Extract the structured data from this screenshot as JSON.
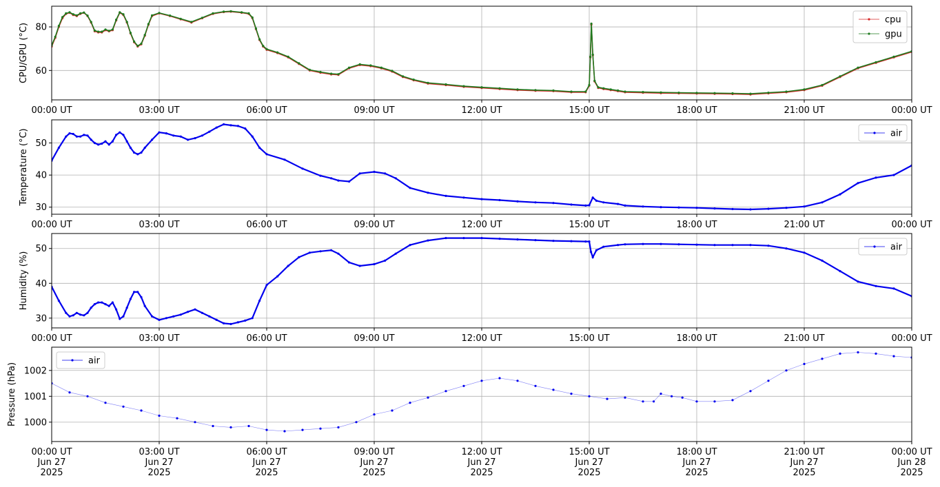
{
  "chart_data": [
    {
      "type": "line",
      "ylabel": "CPU/GPU (°C)",
      "xlim_hours": [
        0,
        24
      ],
      "ylim": [
        46.5,
        89.5
      ],
      "yticks": [
        60,
        80
      ],
      "ytick_labels": [
        "60",
        "80"
      ],
      "xticks_hours": [
        0,
        3,
        6,
        9,
        12,
        15,
        18,
        21,
        24
      ],
      "xtick_labels": [
        "00:00 UT",
        "03:00 UT",
        "06:00 UT",
        "09:00 UT",
        "12:00 UT",
        "15:00 UT",
        "18:00 UT",
        "21:00 UT",
        "00:00 UT"
      ],
      "grid": true,
      "legend": "top-right",
      "series": [
        {
          "name": "cpu",
          "color": "#d62728",
          "x_hours": [
            0,
            0.1,
            0.2,
            0.3,
            0.4,
            0.5,
            0.6,
            0.7,
            0.8,
            0.9,
            1.0,
            1.1,
            1.2,
            1.3,
            1.4,
            1.5,
            1.6,
            1.7,
            1.8,
            1.9,
            2.0,
            2.1,
            2.2,
            2.3,
            2.4,
            2.5,
            2.6,
            2.7,
            2.8,
            3.0,
            3.3,
            3.6,
            3.9,
            4.2,
            4.5,
            4.8,
            5.0,
            5.3,
            5.5,
            5.6,
            5.7,
            5.8,
            5.9,
            6.0,
            6.3,
            6.6,
            6.9,
            7.2,
            7.5,
            7.8,
            8.0,
            8.3,
            8.6,
            8.9,
            9.2,
            9.5,
            9.8,
            10.1,
            10.5,
            11,
            11.5,
            12,
            12.5,
            13,
            13.5,
            14,
            14.5,
            14.9,
            15.0,
            15.03,
            15.06,
            15.1,
            15.15,
            15.25,
            15.4,
            15.6,
            15.8,
            16.0,
            16.5,
            17,
            17.5,
            18,
            18.5,
            19,
            19.5,
            20,
            20.5,
            21,
            21.5,
            22,
            22.5,
            23,
            23.5,
            24
          ],
          "values": [
            71,
            75,
            80,
            84,
            86,
            86.5,
            85.5,
            85,
            86,
            86.5,
            85,
            82,
            78,
            77.5,
            77.5,
            78.5,
            78,
            78.5,
            83,
            86.5,
            85.5,
            82,
            77,
            73,
            71,
            72,
            76,
            81,
            85,
            86.2,
            85,
            83.5,
            82,
            84,
            86,
            86.8,
            87,
            86.5,
            86,
            84,
            79,
            74,
            71,
            69.5,
            68,
            66,
            63,
            60,
            59,
            58.2,
            58,
            61,
            62.5,
            62,
            61,
            59.5,
            57,
            55.5,
            54,
            53.3,
            52.5,
            52,
            51.5,
            51,
            50.7,
            50.5,
            50,
            50,
            53,
            66,
            81,
            67,
            55,
            52,
            51.5,
            51,
            50.5,
            50,
            49.8,
            49.6,
            49.5,
            49.4,
            49.3,
            49.2,
            49,
            49.5,
            50,
            51,
            53,
            57,
            61,
            63.5,
            66,
            68.5
          ]
        },
        {
          "name": "gpu",
          "color": "#1f7a1f",
          "x_hours": [
            0,
            0.1,
            0.2,
            0.3,
            0.4,
            0.5,
            0.6,
            0.7,
            0.8,
            0.9,
            1.0,
            1.1,
            1.2,
            1.3,
            1.4,
            1.5,
            1.6,
            1.7,
            1.8,
            1.9,
            2.0,
            2.1,
            2.2,
            2.3,
            2.4,
            2.5,
            2.6,
            2.7,
            2.8,
            3.0,
            3.3,
            3.6,
            3.9,
            4.2,
            4.5,
            4.8,
            5.0,
            5.3,
            5.5,
            5.6,
            5.7,
            5.8,
            5.9,
            6.0,
            6.3,
            6.6,
            6.9,
            7.2,
            7.5,
            7.8,
            8.0,
            8.3,
            8.6,
            8.9,
            9.2,
            9.5,
            9.8,
            10.1,
            10.5,
            11,
            11.5,
            12,
            12.5,
            13,
            13.5,
            14,
            14.5,
            14.9,
            15.0,
            15.03,
            15.06,
            15.1,
            15.15,
            15.25,
            15.4,
            15.6,
            15.8,
            16.0,
            16.5,
            17,
            17.5,
            18,
            18.5,
            19,
            19.5,
            20,
            20.5,
            21,
            21.5,
            22,
            22.5,
            23,
            23.5,
            24
          ],
          "values": [
            71.5,
            75.5,
            80.5,
            84.5,
            86.2,
            86.7,
            85.8,
            85.3,
            86.2,
            86.6,
            85.2,
            82.3,
            78.3,
            77.8,
            77.8,
            78.8,
            78.2,
            78.8,
            83.3,
            86.7,
            85.8,
            82.3,
            77.3,
            73.3,
            71.3,
            72.3,
            76.3,
            81.3,
            85.3,
            86.4,
            85.2,
            83.7,
            82.3,
            84.2,
            86.2,
            87,
            87.2,
            86.7,
            86.2,
            84.3,
            79.3,
            74.3,
            71.3,
            69.8,
            68.3,
            66.3,
            63.3,
            60.3,
            59.3,
            58.5,
            58.3,
            61.3,
            62.8,
            62.3,
            61.3,
            59.8,
            57.3,
            55.8,
            54.3,
            53.6,
            52.8,
            52.3,
            51.8,
            51.3,
            51,
            50.8,
            50.3,
            50.3,
            53.3,
            66.3,
            81.5,
            67.3,
            55.3,
            52.3,
            51.8,
            51.3,
            50.8,
            50.3,
            50.1,
            49.9,
            49.8,
            49.7,
            49.6,
            49.5,
            49.3,
            49.8,
            50.3,
            51.3,
            53.3,
            57.3,
            61.3,
            63.8,
            66.3,
            68.8
          ]
        }
      ]
    },
    {
      "type": "line",
      "ylabel": "Temperature (°C)",
      "xlim_hours": [
        0,
        24
      ],
      "ylim": [
        27.8,
        57.2
      ],
      "yticks": [
        30,
        40,
        50
      ],
      "ytick_labels": [
        "30",
        "40",
        "50"
      ],
      "xticks_hours": [
        0,
        3,
        6,
        9,
        12,
        15,
        18,
        21,
        24
      ],
      "xtick_labels": [
        "00:00 UT",
        "03:00 UT",
        "06:00 UT",
        "09:00 UT",
        "12:00 UT",
        "15:00 UT",
        "18:00 UT",
        "21:00 UT",
        "00:00 UT"
      ],
      "grid": true,
      "legend": "top-right",
      "series": [
        {
          "name": "air",
          "color": "#0000ee",
          "x_hours": [
            0,
            0.2,
            0.4,
            0.5,
            0.6,
            0.7,
            0.8,
            0.9,
            1.0,
            1.1,
            1.2,
            1.3,
            1.4,
            1.5,
            1.6,
            1.7,
            1.8,
            1.9,
            2.0,
            2.1,
            2.2,
            2.3,
            2.4,
            2.5,
            2.6,
            2.8,
            3.0,
            3.2,
            3.4,
            3.6,
            3.8,
            4.0,
            4.2,
            4.4,
            4.6,
            4.8,
            5.0,
            5.2,
            5.4,
            5.6,
            5.8,
            6.0,
            6.5,
            7.0,
            7.5,
            7.8,
            8.0,
            8.3,
            8.6,
            9.0,
            9.3,
            9.6,
            10.0,
            10.5,
            11,
            11.5,
            12,
            12.5,
            13,
            13.5,
            14,
            14.5,
            14.9,
            15.0,
            15.1,
            15.2,
            15.4,
            15.8,
            16.0,
            16.5,
            17,
            17.5,
            18,
            18.5,
            19,
            19.5,
            20,
            20.5,
            21,
            21.5,
            22,
            22.5,
            23,
            23.5,
            24
          ],
          "values": [
            44.5,
            48.5,
            52,
            53,
            52.8,
            52,
            52,
            52.5,
            52.3,
            51,
            50,
            49.5,
            49.8,
            50.5,
            49.5,
            50.5,
            52.5,
            53.3,
            52.5,
            50.5,
            48.5,
            47,
            46.5,
            47,
            48.5,
            51,
            53.3,
            53,
            52.3,
            52,
            51,
            51.5,
            52.3,
            53.5,
            54.8,
            55.8,
            55.5,
            55.3,
            54.5,
            52,
            48.5,
            46.5,
            44.8,
            42,
            39.8,
            39,
            38.3,
            38,
            40.5,
            41,
            40.5,
            39,
            36,
            34.5,
            33.5,
            33,
            32.5,
            32.2,
            31.8,
            31.5,
            31.3,
            30.8,
            30.5,
            30.6,
            33,
            32,
            31.5,
            31,
            30.5,
            30.2,
            30,
            29.9,
            29.8,
            29.6,
            29.4,
            29.3,
            29.5,
            29.8,
            30.2,
            31.5,
            34,
            37.5,
            39.2,
            40,
            43
          ]
        }
      ]
    },
    {
      "type": "line",
      "ylabel": "Humidity (%)",
      "xlim_hours": [
        0,
        24
      ],
      "ylim": [
        27.2,
        54.3
      ],
      "yticks": [
        30,
        40,
        50
      ],
      "ytick_labels": [
        "30",
        "40",
        "50"
      ],
      "xticks_hours": [
        0,
        3,
        6,
        9,
        12,
        15,
        18,
        21,
        24
      ],
      "xtick_labels": [
        "00:00 UT",
        "03:00 UT",
        "06:00 UT",
        "09:00 UT",
        "12:00 UT",
        "15:00 UT",
        "18:00 UT",
        "21:00 UT",
        "00:00 UT"
      ],
      "grid": true,
      "legend": "top-right",
      "series": [
        {
          "name": "air",
          "color": "#0000ee",
          "x_hours": [
            0,
            0.2,
            0.4,
            0.5,
            0.6,
            0.7,
            0.8,
            0.9,
            1.0,
            1.1,
            1.2,
            1.3,
            1.4,
            1.5,
            1.6,
            1.7,
            1.8,
            1.9,
            2.0,
            2.1,
            2.2,
            2.3,
            2.4,
            2.5,
            2.6,
            2.8,
            3.0,
            3.2,
            3.4,
            3.6,
            3.8,
            4.0,
            4.2,
            4.4,
            4.6,
            4.8,
            5.0,
            5.2,
            5.4,
            5.6,
            5.8,
            6.0,
            6.3,
            6.6,
            6.9,
            7.2,
            7.5,
            7.8,
            8.0,
            8.3,
            8.6,
            9.0,
            9.3,
            9.6,
            10.0,
            10.5,
            11,
            11.5,
            12,
            12.5,
            13,
            13.5,
            14,
            14.5,
            14.9,
            15.0,
            15.05,
            15.1,
            15.2,
            15.4,
            15.8,
            16.0,
            16.5,
            17,
            17.5,
            18,
            18.5,
            19,
            19.5,
            20,
            20.5,
            21,
            21.5,
            22,
            22.5,
            23,
            23.5,
            24
          ],
          "values": [
            39,
            35,
            31.5,
            30.5,
            30.8,
            31.5,
            31,
            30.8,
            31.5,
            33,
            34,
            34.5,
            34.5,
            34,
            33.5,
            34.5,
            32.5,
            29.8,
            30.5,
            33,
            35.5,
            37.5,
            37.5,
            36,
            33.5,
            30.5,
            29.5,
            30,
            30.5,
            31,
            31.8,
            32.5,
            31.5,
            30.5,
            29.5,
            28.5,
            28.3,
            28.8,
            29.3,
            30,
            35,
            39.5,
            42,
            45,
            47.5,
            48.8,
            49.2,
            49.5,
            48.5,
            46,
            45,
            45.5,
            46.5,
            48.5,
            51,
            52.3,
            53,
            53,
            53,
            52.8,
            52.6,
            52.4,
            52.2,
            52.1,
            52,
            52,
            49,
            47.5,
            49.5,
            50.5,
            51,
            51.2,
            51.3,
            51.3,
            51.2,
            51.1,
            51,
            51,
            51,
            50.8,
            50,
            48.8,
            46.5,
            43.5,
            40.5,
            39.2,
            38.5,
            36.3
          ]
        }
      ]
    },
    {
      "type": "scatter",
      "ylabel": "Pressure (hPa)",
      "xlim_hours": [
        0,
        24
      ],
      "ylim": [
        999.25,
        1002.9
      ],
      "yticks": [
        1000,
        1001,
        1002
      ],
      "ytick_labels": [
        "1000",
        "1001",
        "1002"
      ],
      "xticks_hours": [
        0,
        3,
        6,
        9,
        12,
        15,
        18,
        21,
        24
      ],
      "xtick_labels": [
        "00:00 UT\nJun 27\n2025",
        "03:00 UT\nJun 27\n2025",
        "06:00 UT\nJun 27\n2025",
        "09:00 UT\nJun 27\n2025",
        "12:00 UT\nJun 27\n2025",
        "15:00 UT\nJun 27\n2025",
        "18:00 UT\nJun 27\n2025",
        "21:00 UT\nJun 27\n2025",
        "00:00 UT\nJun 28\n2025"
      ],
      "grid": true,
      "legend": "top-left",
      "series": [
        {
          "name": "air",
          "color": "#0000ee",
          "x_hours": [
            0,
            0.5,
            1,
            1.5,
            2,
            2.5,
            3,
            3.5,
            4,
            4.5,
            5,
            5.5,
            6,
            6.5,
            7,
            7.5,
            8,
            8.5,
            9,
            9.5,
            10,
            10.5,
            11,
            11.5,
            12,
            12.5,
            13,
            13.5,
            14,
            14.5,
            15,
            15.5,
            16,
            16.5,
            16.8,
            17,
            17.3,
            17.6,
            18,
            18.5,
            19,
            19.5,
            20,
            20.5,
            21,
            21.5,
            22,
            22.5,
            23,
            23.5,
            24
          ],
          "values": [
            1001.5,
            1001.15,
            1001.0,
            1000.75,
            1000.6,
            1000.45,
            1000.25,
            1000.15,
            1000.0,
            999.85,
            999.8,
            999.85,
            999.7,
            999.65,
            999.7,
            999.75,
            999.8,
            1000.0,
            1000.3,
            1000.45,
            1000.75,
            1000.95,
            1001.2,
            1001.4,
            1001.6,
            1001.7,
            1001.6,
            1001.4,
            1001.25,
            1001.1,
            1001.0,
            1000.9,
            1000.95,
            1000.8,
            1000.8,
            1001.1,
            1001.0,
            1000.95,
            1000.8,
            1000.8,
            1000.85,
            1001.2,
            1001.6,
            1002.0,
            1002.25,
            1002.45,
            1002.65,
            1002.7,
            1002.65,
            1002.55,
            1002.5
          ]
        }
      ]
    }
  ]
}
